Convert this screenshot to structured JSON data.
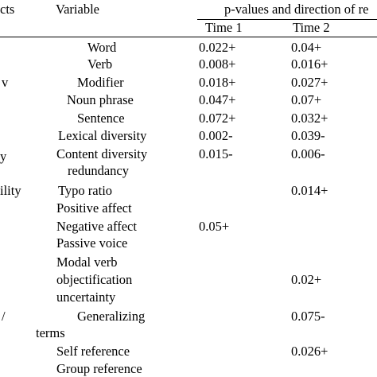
{
  "header": {
    "col_aspects": "cts",
    "col_variable": "Variable",
    "col_pvalues": "p-values and direction of re",
    "time1": "Time 1",
    "time2": "Time 2"
  },
  "left_fragments": [
    "v",
    "y",
    "ility",
    "/"
  ],
  "rows": [
    {
      "variable": "Word",
      "t1": "0.022+",
      "t2": "0.04+"
    },
    {
      "variable": "Verb",
      "t1": "0.008+",
      "t2": "0.016+"
    },
    {
      "variable": "Modifier",
      "t1": "0.018+",
      "t2": "0.027+"
    },
    {
      "variable": "Noun phrase",
      "t1": "0.047+",
      "t2": "0.07+"
    },
    {
      "variable": "Sentence",
      "t1": "0.072+",
      "t2": "0.032+"
    },
    {
      "variable": "Lexical diversity",
      "t1": "0.002-",
      "t2": "0.039-"
    },
    {
      "variable": "Content diversity",
      "t1": "0.015-",
      "t2": "0.006-"
    },
    {
      "variable": "redundancy",
      "t1": "",
      "t2": ""
    },
    {
      "variable": "Typo ratio",
      "t1": "",
      "t2": "0.014+"
    },
    {
      "variable": "Positive affect",
      "t1": "",
      "t2": ""
    },
    {
      "variable": "Negative affect",
      "t1": "0.05+",
      "t2": ""
    },
    {
      "variable": "Passive voice",
      "t1": "",
      "t2": ""
    },
    {
      "variable": "Modal verb",
      "t1": "",
      "t2": ""
    },
    {
      "variable": "objectification",
      "t1": "",
      "t2": "0.02+"
    },
    {
      "variable": "uncertainty",
      "t1": "",
      "t2": ""
    },
    {
      "variable": "Generalizing",
      "t1": "",
      "t2": "0.075-"
    },
    {
      "variable": "terms",
      "t1": "",
      "t2": ""
    },
    {
      "variable": "Self reference",
      "t1": "",
      "t2": "0.026+"
    },
    {
      "variable": "Group reference",
      "t1": "",
      "t2": ""
    }
  ]
}
